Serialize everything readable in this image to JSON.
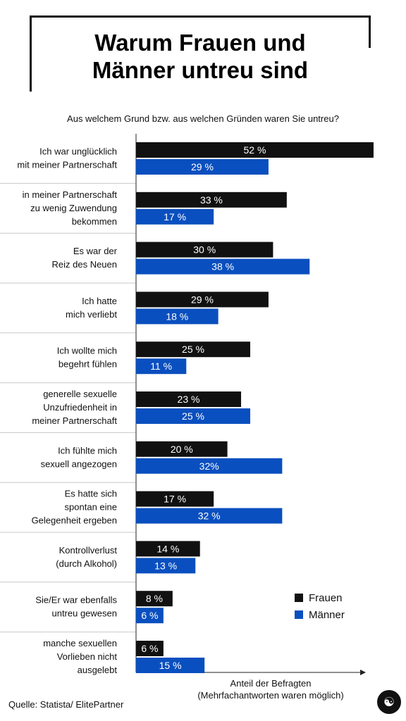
{
  "title_lines": [
    "Warum Frauen und",
    "Männer untreu sind"
  ],
  "subtitle": "Aus welchem Grund bzw. aus welchen Gründen waren Sie untreu?",
  "axis_label_lines": [
    "Anteil der Befragten",
    "(Mehrfachantworten waren möglich)"
  ],
  "source": "Quelle: Statista/ ElitePartner",
  "logo_icon": "figure-icon",
  "colors": {
    "frauen": "#111111",
    "maenner": "#0a4fbf",
    "grid": "#c8c8c8"
  },
  "chart_data": {
    "type": "bar",
    "orientation": "horizontal",
    "categories": [
      [
        "Ich war unglücklich",
        "mit meiner Partnerschaft"
      ],
      [
        "in meiner Partnerschaft",
        "zu wenig Zuwendung",
        "bekommen"
      ],
      [
        "Es war der",
        "Reiz des Neuen"
      ],
      [
        "Ich hatte",
        "mich verliebt"
      ],
      [
        "Ich wollte mich",
        "begehrt fühlen"
      ],
      [
        "generelle sexuelle",
        "Unzufriedenheit in",
        "meiner Partnerschaft"
      ],
      [
        "Ich fühlte mich",
        "sexuell angezogen"
      ],
      [
        "Es hatte sich",
        "spontan eine",
        "Gelegenheit ergeben"
      ],
      [
        "Kontrollverlust",
        "(durch Alkohol)"
      ],
      [
        "Sie/Er war ebenfalls",
        "untreu gewesen"
      ],
      [
        "manche sexuellen",
        "Vorlieben nicht",
        "ausgelebt"
      ]
    ],
    "series": [
      {
        "name": "Frauen",
        "values": [
          52,
          33,
          30,
          29,
          25,
          23,
          20,
          17,
          14,
          8,
          6
        ],
        "labels": [
          "52 %",
          "33 %",
          "30 %",
          "29 %",
          "25 %",
          "23 %",
          "20 %",
          "17 %",
          "14 %",
          "8 %",
          "6 %"
        ]
      },
      {
        "name": "Männer",
        "values": [
          29,
          17,
          38,
          18,
          11,
          25,
          32,
          32,
          13,
          6,
          15
        ],
        "labels": [
          "29 %",
          "17 %",
          "38 %",
          "18 %",
          "11 %",
          "25 %",
          "32%",
          "32 %",
          "13 %",
          "6 %",
          "15 %"
        ]
      }
    ],
    "legend_position": "bottom-right"
  }
}
